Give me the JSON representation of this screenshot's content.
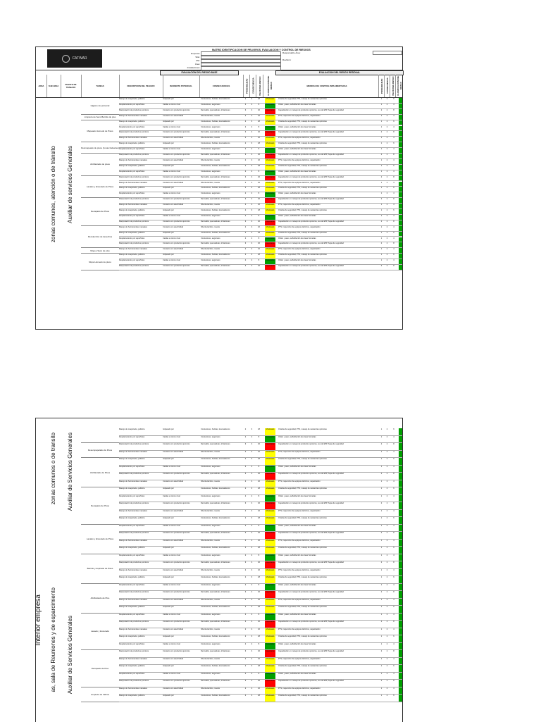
{
  "header": {
    "title": "MATRIZ IDENTIFICACION DE PELIGROS, EVALUACION Y CONTROL DE RIESGOS",
    "logo_text": "CATWAR",
    "labels": [
      "Empresa:",
      "Sitio:",
      "Año:",
      "Área:",
      "Instalaciones:"
    ],
    "values": [
      "",
      "",
      "",
      "",
      ""
    ],
    "responsable_label": "Responsable Área:",
    "revision_label": "Revisión:",
    "right_box": ""
  },
  "sections": {
    "base": "EVALUACION DEL RIESGO BASE",
    "residual": "EVALUACION DEL RIESGO RESIDUAL"
  },
  "columns": {
    "area": "AREA",
    "subarea": "SUB AREA",
    "puesto": "PUESTO DE TRABAJO",
    "tareas": "TAREAS",
    "peligro": "DESCRIPCION DEL PELIGRO",
    "incidente": "INCIDENTE POTENCIAL",
    "consecuencias": "CONSECUENCIAS",
    "prob": "PROBABILIDAD",
    "sev": "CONSECUENCIA",
    "valor": "VALOR DEL RIESGO",
    "clasif": "CLASIFICACION DEL RIESGO",
    "medidas": "MEDIDAS DE CONTROL IMPLEMENTADAS"
  },
  "page1": {
    "subarea": "zonas comunes, atención o de tránsito",
    "puesto": "Auxiliar de servicios Generales",
    "tasks": [
      {
        "name": "Higiene de personal",
        "rows": 3
      },
      {
        "name": "Limpieza de Seco Barrido de piso",
        "rows": 1
      },
      {
        "name": "Mapeado Humedo de Pisos",
        "rows": 4
      },
      {
        "name": "Desmapeado de pisos (zonas baluartes)",
        "rows": 2
      },
      {
        "name": "Abrillantado de pisos",
        "rows": 4
      },
      {
        "name": "Lavado y Encerado de Pisos",
        "rows": 4
      },
      {
        "name": "Decapado de Pisos",
        "rows": 5
      },
      {
        "name": "Recolección de desechos",
        "rows": 4
      },
      {
        "name": "Mopeo Seco de piso",
        "rows": 1
      },
      {
        "name": "Mopa Humedo de pisos",
        "rows": 3
      }
    ]
  },
  "page2": {
    "area": "Interior empresa",
    "subarea1": "zonas comunes o de transito",
    "puesto1": "Auxiliar de Servicios Generales",
    "subarea2": "as, sala de Reuniones y de esparcimiento",
    "puesto2": "Auxiliar de Servicios Generales",
    "tasks": [
      {
        "name": "",
        "rows": 2
      },
      {
        "name": "Desempapelado de Pisos",
        "rows": 2
      },
      {
        "name": "Abrillantado de Pisos",
        "rows": 4
      },
      {
        "name": "Decapado de Pisos",
        "rows": 5
      },
      {
        "name": "Lavado y Encerado de Pisos",
        "rows": 4
      },
      {
        "name": "Barrido y Aspirado de Pisos",
        "rows": 4
      },
      {
        "name": "Abrillantado de Piso",
        "rows": 4
      },
      {
        "name": "Lavado y Encerado",
        "rows": 5
      },
      {
        "name": "Decapado de Piso",
        "rows": 5
      },
      {
        "name": "Limpieza de Vidrios",
        "rows": 2
      }
    ]
  },
  "rows": [
    {
      "peligro": "Manejo de maquinaria, pulidora",
      "inc": "Golpeado por",
      "con": "Contusiones, heridas, traumatismos",
      "p": "2",
      "s": "3",
      "v": "18",
      "lvl": "Moderado",
      "ctl": "Charlas de seguridad, PTS, manejo de sustancias químicas",
      "p2": "1",
      "s2": "2",
      "v2": "6",
      "l2": "Aceptable"
    },
    {
      "peligro": "Desplazamiento por superficies",
      "inc": "Caídas a mismo nivel",
      "con": "Contusiones, esguinces",
      "p": "2",
      "s": "2",
      "v": "8",
      "lvl": "Aceptable",
      "ctl": "Orden y aseo, señalización de áreas húmedas",
      "p2": "1",
      "s2": "2",
      "v2": "4",
      "l2": "Aceptable"
    },
    {
      "peligro": "Manipulación de productos químicos",
      "inc": "Contacto con productos químicos",
      "con": "Dermatitis, quemaduras, irritaciones",
      "p": "3",
      "s": "4",
      "v": "32",
      "lvl": "Importante",
      "ctl": "Capacitación en manejo de productos químicos, uso de EPP, hojas de seguridad",
      "p2": "2",
      "s2": "2",
      "v2": "8",
      "l2": "Aceptable"
    },
    {
      "peligro": "Manejo de herramientas manuales",
      "inc": "Contacto con electricidad",
      "con": "Shock eléctrico, muerte",
      "p": "2",
      "s": "4",
      "v": "16",
      "lvl": "Moderado",
      "ctl": "PTS, inspección de equipos eléctricos, capacitación",
      "p2": "1",
      "s2": "2",
      "v2": "4",
      "l2": "Aceptable"
    }
  ]
}
